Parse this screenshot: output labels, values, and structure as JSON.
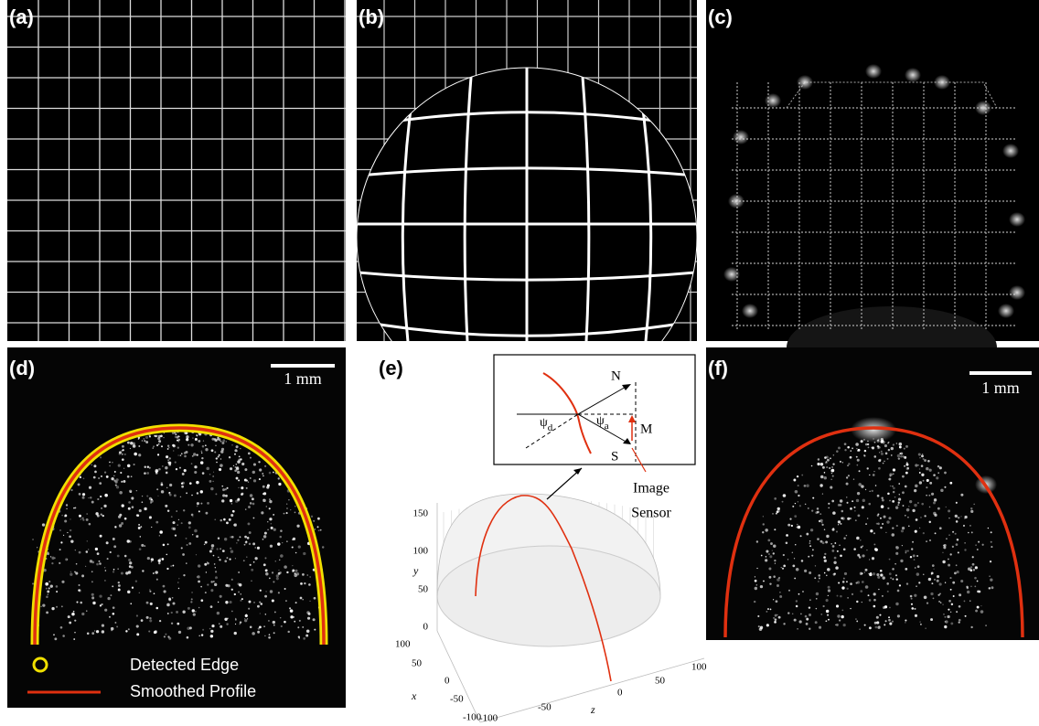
{
  "panels": [
    {
      "label": "(a)"
    },
    {
      "label": "(b)"
    },
    {
      "label": "(c)"
    },
    {
      "label": "(d)",
      "scale_bar": "1 mm",
      "legend": [
        "Detected Edge",
        "Smoothed Profile"
      ]
    },
    {
      "label": "(e)",
      "inset": {
        "vectors": [
          "N",
          "M",
          "S"
        ],
        "angles": [
          {
            "symbol": "ψ",
            "sub": "d"
          },
          {
            "symbol": "ψ",
            "sub": "a"
          }
        ],
        "sensor": [
          "Image",
          "Sensor"
        ]
      },
      "plot": {
        "x_label": "x",
        "y_label": "y",
        "z_label": "z",
        "y_ticks": [
          "150",
          "100",
          "50",
          "0"
        ],
        "x_ticks": [
          "100",
          "50",
          "0",
          "-50",
          "-100"
        ],
        "z_ticks": [
          "-100",
          "-50",
          "0",
          "50",
          "100"
        ]
      }
    },
    {
      "label": "(f)",
      "scale_bar": "1 mm"
    }
  ]
}
